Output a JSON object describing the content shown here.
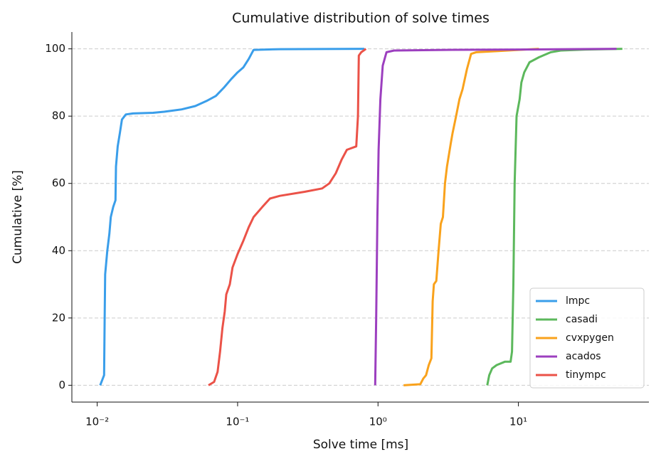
{
  "chart_data": {
    "type": "line",
    "title": "Cumulative distribution of solve times",
    "x_label": "Solve time [ms]",
    "y_label": "Cumulative [%]",
    "xscale": "log",
    "xlim": [
      0.0066,
      85
    ],
    "ylim": [
      -5,
      105
    ],
    "xticks": [
      {
        "value": 0.01,
        "label": "10⁻²"
      },
      {
        "value": 0.1,
        "label": "10⁻¹"
      },
      {
        "value": 1,
        "label": "10⁰"
      },
      {
        "value": 10,
        "label": "10¹"
      }
    ],
    "yticks": [
      0,
      20,
      40,
      60,
      80,
      100
    ],
    "grid": true,
    "legend": "lower right",
    "series": [
      {
        "name": "lmpc",
        "color": "#3a9eea",
        "x": [
          0.0105,
          0.0112,
          0.0113,
          0.0114,
          0.0118,
          0.0122,
          0.0125,
          0.013,
          0.0135,
          0.0136,
          0.014,
          0.0145,
          0.015,
          0.016,
          0.018,
          0.025,
          0.03,
          0.04,
          0.05,
          0.06,
          0.07,
          0.08,
          0.09,
          0.1,
          0.11,
          0.12,
          0.13,
          0.2,
          0.8
        ],
        "values": [
          0,
          3,
          20,
          33,
          40,
          45,
          50,
          53,
          55,
          65,
          71,
          75,
          79,
          80.5,
          80.8,
          81,
          81.3,
          82,
          83,
          84.5,
          86,
          88.5,
          91,
          93,
          94.5,
          97,
          99.7,
          99.9,
          100
        ]
      },
      {
        "name": "casadi",
        "color": "#5cb85c",
        "x": [
          6,
          6.2,
          6.5,
          7,
          8,
          8.8,
          9.0,
          9.2,
          9.4,
          9.7,
          10.2,
          10.5,
          11,
          12,
          14,
          17,
          20,
          30,
          55
        ],
        "values": [
          0,
          3,
          5,
          6,
          7,
          7,
          10,
          30,
          60,
          80,
          85,
          90,
          93,
          96,
          97.5,
          99,
          99.5,
          99.8,
          100
        ]
      },
      {
        "name": "cvxpygen",
        "color": "#f9a21c",
        "x": [
          1.52,
          2.0,
          2.1,
          2.2,
          2.3,
          2.4,
          2.45,
          2.5,
          2.6,
          2.7,
          2.8,
          2.9,
          3.0,
          3.1,
          3.3,
          3.4,
          3.6,
          3.8,
          4.0,
          4.3,
          4.6,
          5,
          7,
          10,
          14
        ],
        "values": [
          0,
          0.3,
          2,
          3,
          6,
          8,
          25,
          30,
          31,
          40,
          48,
          50,
          60,
          65,
          72,
          75,
          80,
          85,
          88,
          94,
          98.5,
          99,
          99.3,
          99.7,
          100
        ]
      },
      {
        "name": "acados",
        "color": "#9c3fbf",
        "x": [
          0.955,
          0.97,
          0.99,
          1.01,
          1.04,
          1.08,
          1.15,
          1.3,
          3,
          10,
          50
        ],
        "values": [
          0,
          20,
          50,
          70,
          85,
          95,
          99,
          99.5,
          99.7,
          99.8,
          100
        ]
      },
      {
        "name": "tinympc",
        "color": "#eb5248",
        "x": [
          0.062,
          0.068,
          0.072,
          0.075,
          0.078,
          0.081,
          0.083,
          0.088,
          0.092,
          0.1,
          0.11,
          0.12,
          0.13,
          0.15,
          0.17,
          0.2,
          0.3,
          0.4,
          0.45,
          0.5,
          0.55,
          0.6,
          0.7,
          0.72,
          0.73,
          0.76,
          0.82
        ],
        "values": [
          0,
          1,
          4,
          10,
          17,
          22,
          27,
          30,
          35,
          39,
          43,
          47,
          50,
          53,
          55.5,
          56.3,
          57.5,
          58.5,
          60,
          63,
          67,
          70,
          71,
          80,
          98,
          99,
          100
        ]
      }
    ]
  }
}
